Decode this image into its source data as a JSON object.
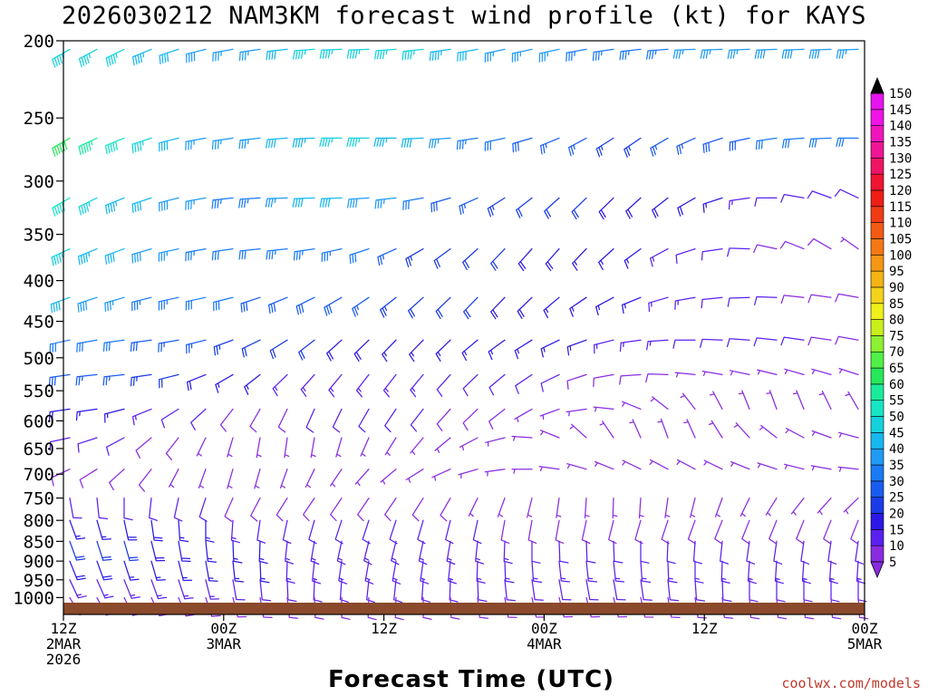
{
  "title": "2026030212 NAM3KM forecast wind profile (kt) for KAYS",
  "credit": "coolwx.com/models",
  "chart_data": {
    "type": "wind-barb time-height",
    "title": "2026030212 NAM3KM forecast wind profile (kt) for KAYS",
    "xlabel": "Forecast Time (UTC)",
    "ylabel": "",
    "units": "kt",
    "x_range_hours": [
      0,
      60
    ],
    "x_ticks": [
      {
        "hour": 0,
        "lines": [
          "12Z",
          "2MAR",
          "2026"
        ]
      },
      {
        "hour": 12,
        "lines": [
          "00Z",
          "3MAR"
        ]
      },
      {
        "hour": 24,
        "lines": [
          "12Z"
        ]
      },
      {
        "hour": 36,
        "lines": [
          "00Z",
          "4MAR"
        ]
      },
      {
        "hour": 48,
        "lines": [
          "12Z"
        ]
      },
      {
        "hour": 60,
        "lines": [
          "00Z",
          "5MAR"
        ]
      }
    ],
    "y_range_hpa": [
      1050,
      200
    ],
    "y_scale": "log",
    "y_ticks": [
      200,
      250,
      300,
      350,
      400,
      450,
      500,
      550,
      600,
      650,
      700,
      750,
      800,
      850,
      900,
      950,
      1000
    ],
    "barb_levels": [
      205,
      265,
      315,
      365,
      420,
      475,
      525,
      580,
      630,
      690,
      750,
      800,
      850,
      900,
      950,
      1000
    ],
    "colorbar": {
      "levels": [
        5,
        10,
        15,
        20,
        25,
        30,
        35,
        40,
        45,
        50,
        55,
        60,
        65,
        70,
        75,
        80,
        85,
        90,
        95,
        100,
        105,
        110,
        115,
        120,
        125,
        130,
        135,
        140,
        145,
        150
      ],
      "colors": [
        "#8a2be2",
        "#5a20f0",
        "#2b18e6",
        "#1a3be8",
        "#1a5cf0",
        "#1a7af5",
        "#1f9bf5",
        "#16b8f0",
        "#14d2dc",
        "#16e6c4",
        "#19eb9c",
        "#26e85a",
        "#50f046",
        "#8ef032",
        "#c8f01c",
        "#f0f01a",
        "#f5d21a",
        "#f5b414",
        "#f59614",
        "#f57814",
        "#f55a14",
        "#f03c14",
        "#f01e14",
        "#f01432",
        "#f01464",
        "#f01496",
        "#f014be",
        "#f014e6",
        "#e614f0",
        "#d214f0"
      ]
    },
    "terrain_color": "#8b4a2b",
    "series": [
      {
        "pressure": 205,
        "speeds": [
          46,
          45,
          46,
          44,
          41,
          39,
          37,
          37,
          41,
          45,
          47,
          47,
          46,
          46,
          43,
          40,
          37,
          36,
          35,
          34,
          33,
          33,
          34,
          35,
          36,
          37,
          38,
          38,
          38,
          37
        ],
        "dirs": [
          240,
          242,
          244,
          248,
          252,
          256,
          260,
          262,
          264,
          266,
          268,
          268,
          266,
          264,
          262,
          260,
          258,
          258,
          258,
          260,
          262,
          264,
          266,
          268,
          268,
          268,
          268,
          268,
          268,
          268
        ]
      },
      {
        "pressure": 265,
        "speeds": [
          60,
          56,
          52,
          46,
          41,
          37,
          35,
          35,
          40,
          44,
          46,
          46,
          44,
          41,
          37,
          33,
          30,
          28,
          26,
          25,
          24,
          24,
          25,
          26,
          28,
          28,
          30,
          30,
          30,
          30
        ],
        "dirs": [
          240,
          245,
          248,
          252,
          256,
          260,
          262,
          264,
          266,
          268,
          270,
          270,
          270,
          268,
          266,
          262,
          258,
          254,
          248,
          242,
          238,
          236,
          240,
          246,
          252,
          258,
          262,
          266,
          268,
          270
        ]
      },
      {
        "pressure": 315,
        "speeds": [
          50,
          47,
          44,
          42,
          38,
          35,
          34,
          34,
          37,
          40,
          40,
          38,
          35,
          32,
          28,
          25,
          23,
          22,
          21,
          20,
          19,
          19,
          19,
          18,
          16,
          14,
          12,
          11,
          10,
          10
        ],
        "dirs": [
          240,
          244,
          248,
          252,
          256,
          260,
          264,
          266,
          268,
          268,
          268,
          266,
          264,
          260,
          254,
          246,
          238,
          232,
          228,
          226,
          226,
          228,
          232,
          240,
          252,
          262,
          270,
          280,
          290,
          295
        ]
      },
      {
        "pressure": 365,
        "speeds": [
          46,
          43,
          40,
          38,
          35,
          33,
          32,
          31,
          33,
          34,
          33,
          30,
          27,
          24,
          22,
          21,
          20,
          19,
          18,
          17,
          16,
          15,
          14,
          12,
          11,
          10,
          9,
          8,
          8,
          7
        ],
        "dirs": [
          245,
          248,
          250,
          254,
          258,
          260,
          262,
          264,
          264,
          262,
          258,
          252,
          246,
          240,
          234,
          228,
          224,
          222,
          222,
          224,
          228,
          234,
          242,
          252,
          262,
          272,
          282,
          292,
          300,
          305
        ]
      },
      {
        "pressure": 420,
        "speeds": [
          40,
          38,
          36,
          34,
          33,
          31,
          30,
          29,
          29,
          29,
          28,
          26,
          24,
          22,
          21,
          20,
          19,
          18,
          17,
          16,
          16,
          15,
          14,
          13,
          12,
          11,
          10,
          9,
          9,
          8
        ],
        "dirs": [
          250,
          252,
          254,
          256,
          258,
          258,
          256,
          252,
          248,
          244,
          240,
          236,
          232,
          228,
          226,
          224,
          224,
          226,
          230,
          236,
          242,
          248,
          254,
          260,
          264,
          268,
          272,
          276,
          278,
          280
        ]
      },
      {
        "pressure": 475,
        "speeds": [
          32,
          31,
          30,
          29,
          27,
          25,
          24,
          22,
          21,
          20,
          19,
          18,
          17,
          17,
          17,
          16,
          16,
          16,
          15,
          15,
          14,
          14,
          13,
          12,
          11,
          10,
          10,
          10,
          9,
          9
        ],
        "dirs": [
          258,
          260,
          262,
          262,
          260,
          256,
          250,
          244,
          238,
          232,
          228,
          226,
          224,
          224,
          226,
          230,
          234,
          238,
          244,
          250,
          256,
          262,
          266,
          270,
          272,
          274,
          276,
          278,
          278,
          280
        ]
      },
      {
        "pressure": 525,
        "speeds": [
          28,
          27,
          25,
          23,
          21,
          19,
          17,
          15,
          14,
          14,
          14,
          14,
          13,
          13,
          12,
          12,
          11,
          10,
          10,
          9,
          9,
          8,
          8,
          7,
          7,
          6,
          6,
          6,
          6,
          6
        ],
        "dirs": [
          262,
          264,
          264,
          262,
          256,
          248,
          240,
          232,
          226,
          222,
          220,
          218,
          218,
          220,
          222,
          226,
          230,
          236,
          244,
          252,
          260,
          266,
          272,
          276,
          280,
          282,
          284,
          286,
          286,
          288
        ]
      },
      {
        "pressure": 580,
        "speeds": [
          18,
          17,
          15,
          13,
          12,
          10,
          9,
          9,
          9,
          10,
          11,
          11,
          11,
          10,
          9,
          8,
          8,
          7,
          7,
          6,
          6,
          6,
          5,
          5,
          5,
          5,
          5,
          5,
          5,
          5
        ],
        "dirs": [
          262,
          262,
          256,
          248,
          238,
          228,
          218,
          210,
          206,
          204,
          206,
          210,
          214,
          218,
          222,
          226,
          232,
          240,
          250,
          262,
          276,
          292,
          308,
          322,
          332,
          338,
          340,
          338,
          334,
          330
        ]
      },
      {
        "pressure": 630,
        "speeds": [
          11,
          11,
          10,
          9,
          8,
          7,
          7,
          7,
          7,
          7,
          7,
          7,
          7,
          6,
          6,
          5,
          5,
          5,
          5,
          5,
          5,
          5,
          5,
          5,
          5,
          5,
          5,
          5,
          5,
          5
        ],
        "dirs": [
          258,
          252,
          242,
          230,
          218,
          206,
          196,
          190,
          188,
          190,
          196,
          204,
          212,
          220,
          230,
          242,
          256,
          274,
          292,
          312,
          326,
          336,
          340,
          336,
          328,
          318,
          308,
          298,
          290,
          285
        ]
      },
      {
        "pressure": 690,
        "speeds": [
          9,
          9,
          8,
          8,
          7,
          7,
          7,
          7,
          7,
          7,
          7,
          7,
          7,
          6,
          6,
          5,
          5,
          5,
          5,
          5,
          5,
          5,
          5,
          5,
          5,
          5,
          5,
          5,
          5,
          5
        ],
        "dirs": [
          245,
          238,
          228,
          218,
          208,
          200,
          196,
          196,
          200,
          206,
          214,
          222,
          230,
          238,
          246,
          254,
          262,
          270,
          278,
          286,
          292,
          296,
          298,
          298,
          296,
          292,
          288,
          284,
          280,
          276
        ]
      },
      {
        "pressure": 750,
        "speeds": [
          10,
          11,
          12,
          12,
          11,
          10,
          9,
          8,
          8,
          8,
          8,
          8,
          8,
          8,
          8,
          7,
          7,
          7,
          7,
          7,
          7,
          7,
          7,
          7,
          7,
          7,
          7,
          7,
          7,
          7
        ],
        "dirs": [
          170,
          174,
          180,
          186,
          192,
          198,
          204,
          208,
          212,
          214,
          214,
          214,
          214,
          212,
          210,
          206,
          200,
          194,
          188,
          184,
          182,
          184,
          188,
          194,
          200,
          206,
          212,
          218,
          222,
          226
        ]
      },
      {
        "pressure": 800,
        "speeds": [
          16,
          17,
          18,
          18,
          17,
          16,
          14,
          12,
          11,
          10,
          10,
          10,
          10,
          10,
          10,
          10,
          9,
          9,
          9,
          9,
          9,
          9,
          9,
          9,
          9,
          9,
          9,
          9,
          9,
          9
        ],
        "dirs": [
          160,
          164,
          168,
          172,
          176,
          180,
          184,
          188,
          192,
          196,
          198,
          198,
          198,
          196,
          194,
          192,
          190,
          190,
          190,
          192,
          194,
          196,
          198,
          200,
          202,
          202,
          202,
          202,
          202,
          202
        ]
      },
      {
        "pressure": 850,
        "speeds": [
          20,
          20,
          20,
          19,
          18,
          17,
          16,
          15,
          14,
          13,
          13,
          13,
          13,
          13,
          13,
          13,
          13,
          12,
          12,
          12,
          12,
          12,
          12,
          12,
          12,
          12,
          12,
          12,
          12,
          12
        ],
        "dirs": [
          160,
          162,
          164,
          166,
          170,
          174,
          178,
          182,
          186,
          190,
          192,
          194,
          194,
          192,
          190,
          186,
          182,
          180,
          178,
          178,
          178,
          180,
          182,
          184,
          186,
          188,
          188,
          188,
          188,
          188
        ]
      },
      {
        "pressure": 900,
        "speeds": [
          18,
          18,
          17,
          17,
          16,
          16,
          15,
          15,
          14,
          14,
          14,
          14,
          14,
          14,
          14,
          14,
          13,
          13,
          13,
          13,
          13,
          13,
          13,
          13,
          13,
          13,
          13,
          13,
          13,
          13
        ],
        "dirs": [
          158,
          160,
          162,
          164,
          166,
          170,
          174,
          178,
          182,
          186,
          188,
          190,
          190,
          188,
          186,
          182,
          178,
          176,
          174,
          174,
          174,
          176,
          178,
          180,
          182,
          184,
          184,
          184,
          184,
          184
        ]
      },
      {
        "pressure": 950,
        "speeds": [
          14,
          14,
          14,
          14,
          13,
          13,
          12,
          12,
          12,
          12,
          12,
          12,
          12,
          12,
          12,
          12,
          11,
          11,
          11,
          11,
          11,
          11,
          11,
          11,
          11,
          11,
          11,
          11,
          11,
          11
        ],
        "dirs": [
          155,
          156,
          158,
          160,
          162,
          166,
          170,
          174,
          178,
          182,
          184,
          186,
          186,
          184,
          182,
          178,
          174,
          172,
          170,
          170,
          170,
          172,
          174,
          176,
          178,
          180,
          180,
          180,
          180,
          180
        ]
      },
      {
        "pressure": 1000,
        "speeds": [
          8,
          8,
          8,
          8,
          8,
          8,
          8,
          8,
          8,
          8,
          8,
          8,
          8,
          8,
          8,
          8,
          8,
          8,
          8,
          8,
          8,
          8,
          8,
          8,
          8,
          8,
          8,
          8,
          8,
          8
        ],
        "dirs": [
          150,
          152,
          154,
          156,
          158,
          162,
          166,
          170,
          174,
          178,
          180,
          182,
          182,
          180,
          178,
          174,
          170,
          168,
          166,
          166,
          166,
          168,
          170,
          172,
          174,
          176,
          176,
          176,
          176,
          176
        ]
      }
    ]
  }
}
